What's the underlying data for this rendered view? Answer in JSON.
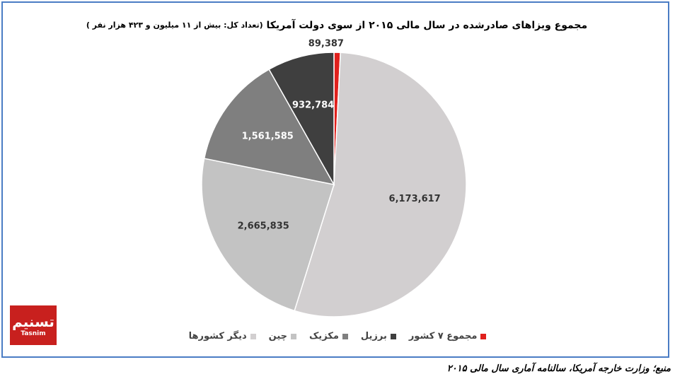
{
  "chart_data": {
    "type": "pie",
    "title": "مجموع  ویزاهای صادرشده در سال مالی ۲۰۱۵ از سوی دولت آمریکا",
    "subtitle": "(تعداد کل: بیش از ۱۱ میلیون و ۴۲۳ هزار نفر )",
    "categories": [
      "مجموع ۷ کشور",
      "دیگر کشورها",
      "چین",
      "مکزیک",
      "برزیل"
    ],
    "values": [
      89387,
      6173617,
      2665835,
      1561585,
      932784
    ],
    "value_labels": [
      "89,387",
      "6,173,617",
      "2,665,835",
      "1,561,585",
      "932,784"
    ],
    "colors": [
      "#e0201c",
      "#d2cfd0",
      "#c3c3c3",
      "#7f7f7f",
      "#3f3f3f"
    ],
    "legend": "bottom"
  },
  "source": "منبع؛ وزارت خارجه آمریکا، سالنامه آماری سال مالی ۲۰۱۵",
  "logo": {
    "name": "تسنیم",
    "agency": "Tasnim"
  }
}
